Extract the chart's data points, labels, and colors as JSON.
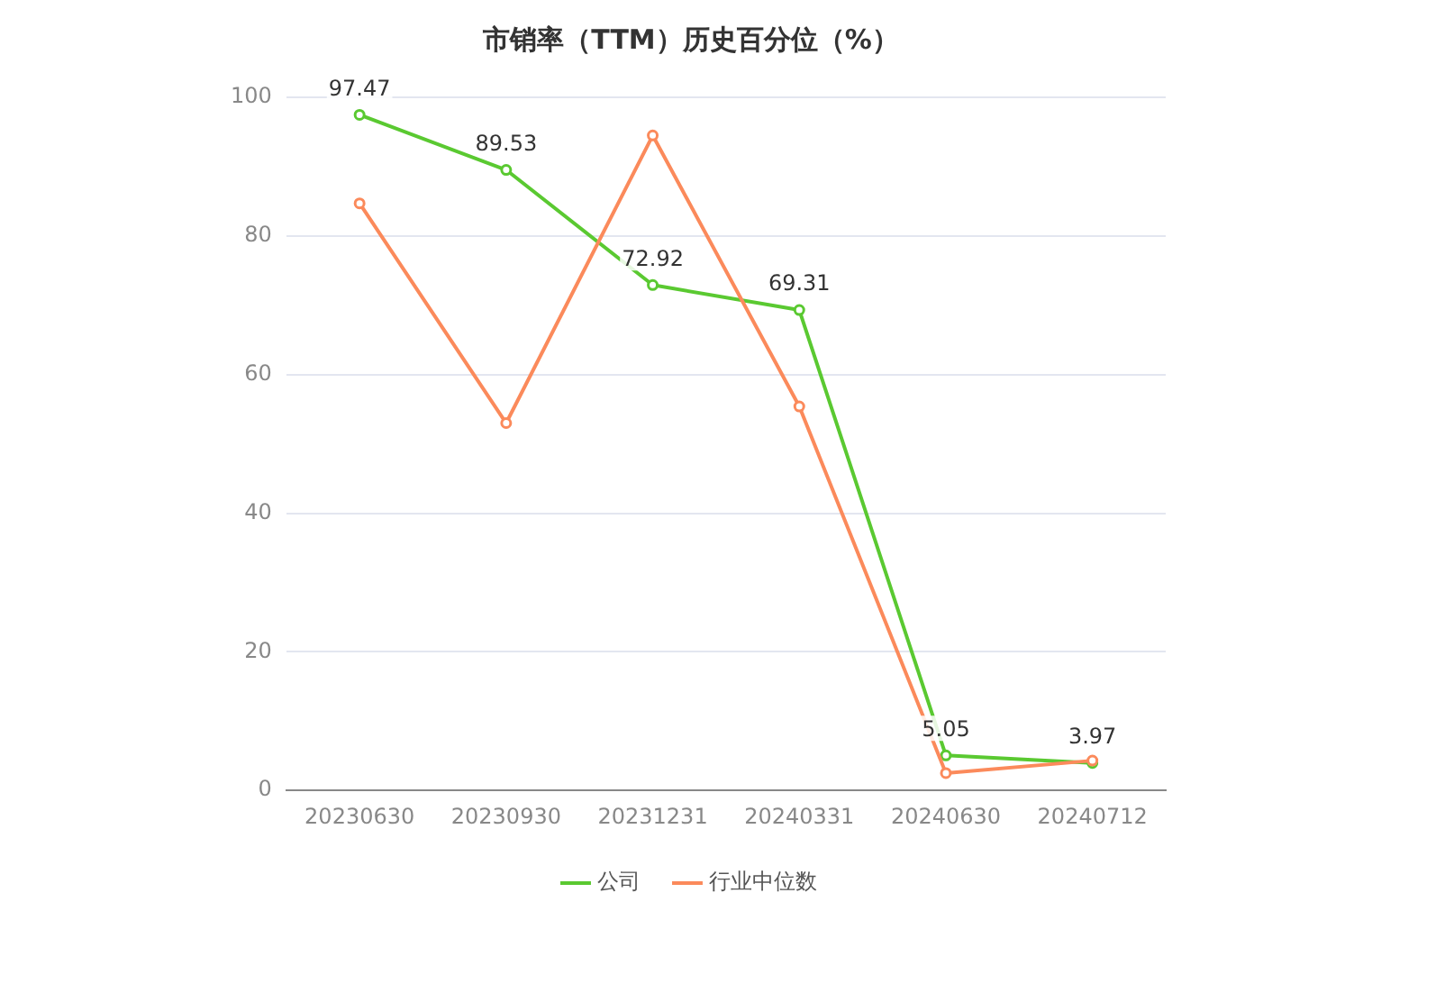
{
  "chart_data": {
    "type": "line",
    "title": "市销率（TTM）历史百分位（%）",
    "categories": [
      "20230630",
      "20230930",
      "20231231",
      "20240331",
      "20240630",
      "20240712"
    ],
    "series": [
      {
        "name": "公司",
        "color": "#5ac931",
        "values": [
          97.47,
          89.53,
          72.92,
          69.31,
          5.05,
          3.97
        ],
        "value_labels": [
          "97.47",
          "89.53",
          "72.92",
          "69.31",
          "5.05",
          "3.97"
        ]
      },
      {
        "name": "行业中位数",
        "color": "#fb8a5b",
        "values": [
          84.7,
          53.0,
          94.5,
          55.4,
          2.5,
          4.3
        ]
      }
    ],
    "ylim": [
      0,
      100
    ],
    "yticks": [
      0,
      20,
      40,
      60,
      80,
      100
    ],
    "grid": "y",
    "legend": "bottom",
    "marker": "circle"
  }
}
